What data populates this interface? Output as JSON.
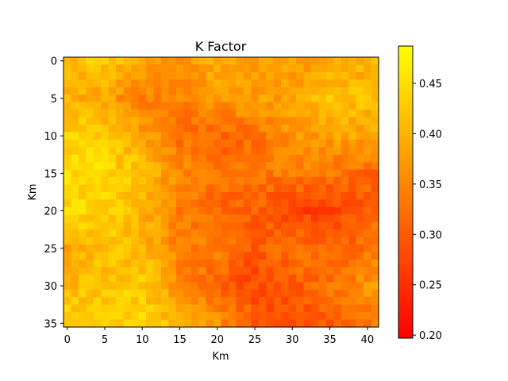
{
  "chart_data": {
    "type": "heatmap",
    "title": "K Factor",
    "xlabel": "Km",
    "ylabel": "Km",
    "n_cols": 42,
    "n_rows": 36,
    "x_ticks": [
      0,
      5,
      10,
      15,
      20,
      25,
      30,
      35,
      40
    ],
    "y_ticks": [
      0,
      5,
      10,
      15,
      20,
      25,
      30,
      35
    ],
    "colorbar": {
      "min": 0.197,
      "max": 0.487,
      "ticks": [
        0.2,
        0.25,
        0.3,
        0.35,
        0.4,
        0.45
      ],
      "tick_labels": [
        "0.20",
        "0.25",
        "0.30",
        "0.35",
        "0.40",
        "0.45"
      ],
      "colormap": "autumn"
    },
    "grid": false,
    "zones_note": "",
    "anchors": {
      "cols": [
        0,
        5,
        10,
        15,
        20,
        25,
        30,
        35,
        41
      ],
      "rows": [
        0,
        5,
        10,
        15,
        20,
        25,
        30,
        35
      ],
      "values": [
        [
          0.4,
          0.43,
          0.38,
          0.36,
          0.4,
          0.37,
          0.38,
          0.38,
          0.4
        ],
        [
          0.4,
          0.38,
          0.34,
          0.34,
          0.37,
          0.38,
          0.38,
          0.42,
          0.41
        ],
        [
          0.44,
          0.43,
          0.38,
          0.33,
          0.31,
          0.32,
          0.37,
          0.38,
          0.39
        ],
        [
          0.45,
          0.44,
          0.42,
          0.35,
          0.33,
          0.33,
          0.34,
          0.33,
          0.31
        ],
        [
          0.44,
          0.44,
          0.4,
          0.34,
          0.31,
          0.31,
          0.27,
          0.27,
          0.31
        ],
        [
          0.39,
          0.42,
          0.41,
          0.34,
          0.34,
          0.29,
          0.33,
          0.31,
          0.33
        ],
        [
          0.41,
          0.41,
          0.43,
          0.36,
          0.31,
          0.28,
          0.3,
          0.33,
          0.37
        ],
        [
          0.45,
          0.43,
          0.44,
          0.4,
          0.36,
          0.3,
          0.29,
          0.29,
          0.34
        ]
      ]
    }
  }
}
